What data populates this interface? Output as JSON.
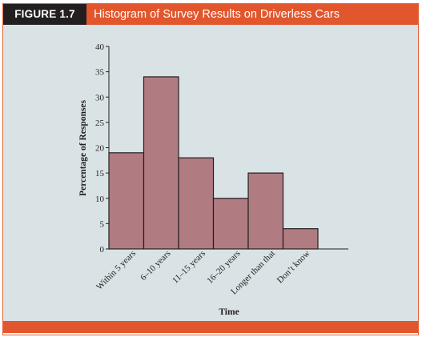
{
  "figure": {
    "label": "FIGURE 1.7",
    "title": "Histogram of Survey Results on Driverless Cars"
  },
  "colors": {
    "header_orange": "#e2562d",
    "label_black": "#231f20",
    "plot_background": "#d9e3e6",
    "bar_fill": "#b07c82",
    "bar_stroke": "#231f20"
  },
  "chart_data": {
    "type": "bar",
    "title": "Histogram of Survey Results on Driverless Cars",
    "xlabel": "Time",
    "ylabel": "Percentage of Responses",
    "categories": [
      "Within 5 years",
      "6–10 years",
      "11–15 years",
      "16–20 years",
      "Longer than that",
      "Don’t know"
    ],
    "values": [
      19,
      34,
      18,
      10,
      15,
      4
    ],
    "ylim": [
      0,
      40
    ],
    "yticks": [
      0,
      5,
      10,
      15,
      20,
      25,
      30,
      35,
      40
    ],
    "grid": false,
    "legend": "none"
  }
}
